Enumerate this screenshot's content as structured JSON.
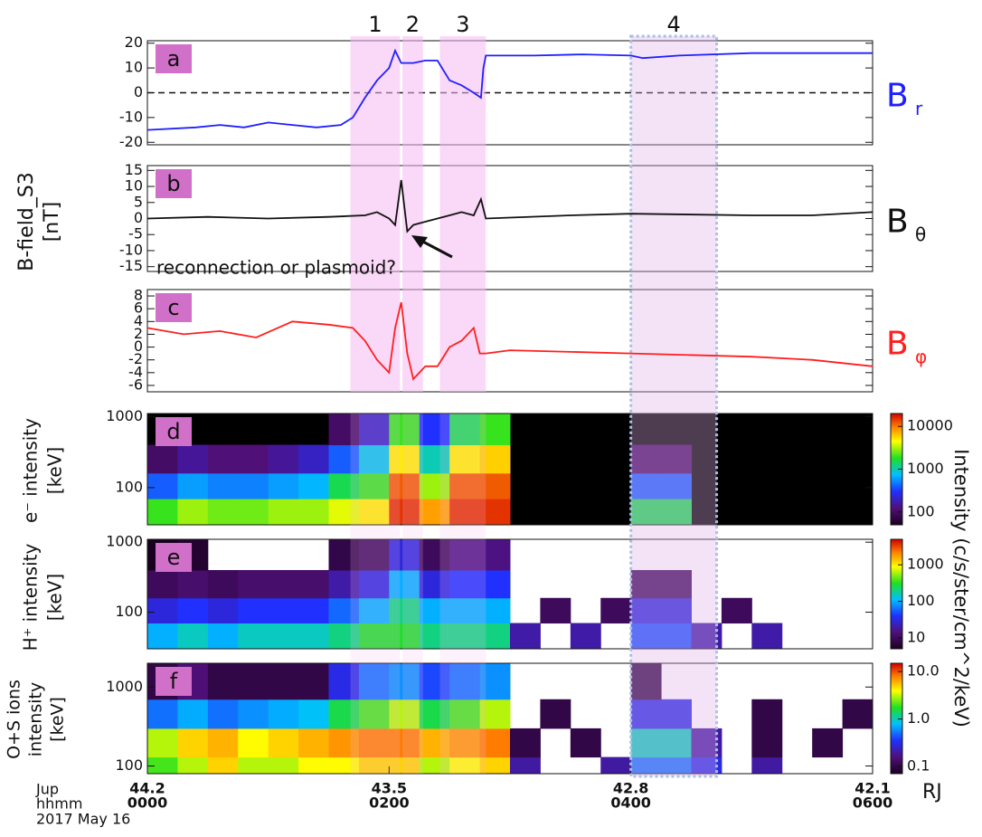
{
  "figure": {
    "y_label_b": [
      "B-field_S3",
      "[nT]"
    ],
    "y_label_d": [
      "e⁻ intensity",
      "[keV]"
    ],
    "y_label_e": [
      "H⁺ intensity",
      "[keV]"
    ],
    "y_label_f": [
      "O+S ions",
      "intensity",
      "[keV]"
    ],
    "colorbar_label": "Intensity (c/s/ster/cm^2/keV)",
    "footer_rows": [
      "Jup",
      "hhmm",
      "2017 May 16"
    ],
    "distance_unit": "RJ",
    "annotation": "reconnection or plasmoid?",
    "regions": [
      {
        "label": "1",
        "start": 1.68,
        "end": 2.09
      },
      {
        "label": "2",
        "start": 2.11,
        "end": 2.28
      },
      {
        "label": "3",
        "start": 2.42,
        "end": 2.8
      },
      {
        "label": "4",
        "start": 4.0,
        "end": 4.71
      }
    ]
  },
  "chart_data": [
    {
      "type": "line",
      "panel": "a",
      "color": "#1f1fff",
      "zero_line": true,
      "side_label": {
        "text": "B",
        "sub": "r"
      },
      "xlim": [
        0,
        6
      ],
      "ylim": [
        -21,
        21
      ],
      "yticks": [
        -20,
        -10,
        0,
        10,
        20
      ],
      "x": [
        0,
        0.4,
        0.6,
        0.8,
        1.0,
        1.2,
        1.4,
        1.6,
        1.7,
        1.8,
        1.9,
        2.0,
        2.05,
        2.1,
        2.2,
        2.3,
        2.4,
        2.5,
        2.6,
        2.7,
        2.76,
        2.78,
        2.8,
        3.2,
        3.6,
        4.0,
        4.1,
        4.4,
        5.0,
        5.5,
        6.0
      ],
      "y": [
        -15,
        -14,
        -13,
        -14,
        -12,
        -13,
        -14,
        -13,
        -10,
        -2,
        5,
        10,
        17,
        12,
        12,
        13,
        13,
        5,
        3,
        0,
        -2,
        10,
        15,
        15,
        15.5,
        15,
        14,
        15,
        16,
        16,
        16
      ]
    },
    {
      "type": "line",
      "panel": "b",
      "color": "#111111",
      "side_label": {
        "text": "B",
        "sub": "θ"
      },
      "xlim": [
        0,
        6
      ],
      "ylim": [
        -16.5,
        16.5
      ],
      "yticks": [
        -15,
        -10,
        -5,
        0,
        5,
        10,
        15
      ],
      "x": [
        0,
        0.5,
        1.0,
        1.5,
        1.8,
        1.9,
        2.0,
        2.05,
        2.1,
        2.15,
        2.2,
        2.3,
        2.5,
        2.6,
        2.7,
        2.76,
        2.8,
        3.5,
        4.0,
        5.0,
        5.5,
        6.0
      ],
      "y": [
        0,
        0.5,
        0,
        0.5,
        1,
        2,
        0,
        -2,
        12,
        -4,
        -2,
        -1,
        1,
        2,
        1,
        6,
        0,
        1,
        1.5,
        1,
        1,
        2
      ]
    },
    {
      "type": "line",
      "panel": "c",
      "color": "#ff1f1f",
      "side_label": {
        "text": "B",
        "sub": "φ"
      },
      "xlim": [
        0,
        6
      ],
      "ylim": [
        -7,
        9
      ],
      "yticks": [
        -6,
        -4,
        -2,
        0,
        2,
        4,
        6,
        8
      ],
      "x": [
        0,
        0.3,
        0.6,
        0.9,
        1.2,
        1.5,
        1.7,
        1.8,
        1.9,
        2.0,
        2.05,
        2.1,
        2.15,
        2.2,
        2.3,
        2.4,
        2.5,
        2.6,
        2.7,
        2.75,
        2.8,
        3.0,
        4.0,
        5.0,
        5.5,
        6.0
      ],
      "y": [
        3,
        2,
        2.5,
        1.5,
        4,
        3.5,
        3,
        1,
        -2,
        -4,
        3,
        7,
        -1,
        -5,
        -3,
        -3,
        0,
        1,
        3,
        -1,
        -1,
        -0.5,
        -1,
        -1.5,
        -2,
        -3
      ]
    },
    {
      "type": "heatmap",
      "panel": "d",
      "missing_color": "#000000",
      "xlim": [
        0,
        6
      ],
      "ylim": [
        30,
        1100
      ],
      "yticks": [
        100,
        1000
      ],
      "log_y": true,
      "clim": [
        50,
        20000
      ],
      "cticks": [
        100,
        1000,
        10000
      ],
      "x_edges": [
        0,
        0.25,
        0.5,
        0.75,
        1.0,
        1.25,
        1.5,
        1.75,
        2.0,
        2.25,
        2.5,
        2.75,
        3.0,
        3.25,
        3.5,
        3.75,
        4.0,
        4.25,
        4.5,
        4.75,
        5.0,
        5.25,
        5.5,
        5.75,
        6.0
      ],
      "y_edges": [
        30,
        70,
        160,
        400,
        1100
      ],
      "z": [
        [
          2000,
          3000,
          2500,
          2500,
          3000,
          3000,
          4000,
          5000,
          15000,
          8000,
          15000,
          15000,
          null,
          null,
          null,
          null,
          1500,
          1500,
          null,
          null,
          null,
          null,
          null,
          null
        ],
        [
          400,
          600,
          500,
          500,
          600,
          700,
          1500,
          2000,
          12000,
          3000,
          12000,
          12000,
          null,
          null,
          null,
          null,
          400,
          400,
          null,
          null,
          null,
          null,
          null,
          null
        ],
        [
          100,
          150,
          120,
          120,
          150,
          200,
          400,
          800,
          5000,
          1000,
          5000,
          6000,
          null,
          null,
          null,
          null,
          100,
          100,
          null,
          null,
          null,
          null,
          null,
          null
        ],
        [
          null,
          null,
          null,
          null,
          null,
          null,
          100,
          200,
          2000,
          300,
          1500,
          2000,
          null,
          null,
          null,
          null,
          null,
          null,
          null,
          null,
          null,
          null,
          null,
          null
        ]
      ]
    },
    {
      "type": "heatmap",
      "panel": "e",
      "missing_color": "#ffffff",
      "xlim": [
        0,
        6
      ],
      "ylim": [
        30,
        1100
      ],
      "yticks": [
        100,
        1000
      ],
      "log_y": true,
      "clim": [
        5,
        5000
      ],
      "cticks": [
        10,
        100,
        1000
      ],
      "x_edges": [
        0,
        0.25,
        0.5,
        0.75,
        1.0,
        1.25,
        1.5,
        1.75,
        2.0,
        2.25,
        2.5,
        2.75,
        3.0,
        3.25,
        3.5,
        3.75,
        4.0,
        4.25,
        4.5,
        4.75,
        5.0,
        5.25,
        5.5,
        5.75,
        6.0
      ],
      "y_edges": [
        30,
        70,
        160,
        400,
        1100
      ],
      "z": [
        [
          100,
          150,
          100,
          150,
          150,
          150,
          200,
          300,
          300,
          200,
          200,
          200,
          20,
          null,
          20,
          null,
          50,
          50,
          20,
          null,
          20,
          null,
          null,
          null
        ],
        [
          30,
          40,
          30,
          40,
          40,
          40,
          60,
          100,
          200,
          100,
          100,
          100,
          null,
          10,
          null,
          10,
          30,
          30,
          null,
          10,
          null,
          null,
          null,
          null
        ],
        [
          10,
          12,
          10,
          12,
          12,
          12,
          20,
          30,
          100,
          30,
          40,
          40,
          null,
          null,
          null,
          null,
          10,
          10,
          null,
          null,
          null,
          null,
          null,
          null
        ],
        [
          5,
          6,
          null,
          null,
          null,
          null,
          8,
          10,
          30,
          10,
          15,
          15,
          null,
          null,
          null,
          null,
          null,
          null,
          null,
          null,
          null,
          null,
          null,
          null
        ]
      ]
    },
    {
      "type": "heatmap",
      "panel": "f",
      "missing_color": "#ffffff",
      "xlim": [
        0,
        6
      ],
      "ylim": [
        80,
        2000
      ],
      "yticks": [
        100,
        1000
      ],
      "log_y": true,
      "clim": [
        0.07,
        15
      ],
      "cticks": [
        0.1,
        {
          "value": 1,
          "label": "1.0"
        },
        {
          "value": 10,
          "label": "10.0"
        }
      ],
      "x_edges": [
        0,
        0.25,
        0.5,
        0.75,
        1.0,
        1.25,
        1.5,
        1.75,
        2.0,
        2.25,
        2.5,
        2.75,
        3.0,
        3.25,
        3.5,
        3.75,
        4.0,
        4.25,
        4.5,
        4.75,
        5.0,
        5.25,
        5.5,
        5.75,
        6.0
      ],
      "y_edges": [
        80,
        130,
        300,
        700,
        2000
      ],
      "z": [
        [
          2,
          3,
          5,
          3,
          3,
          4,
          4,
          5,
          5,
          3,
          4,
          5,
          0.2,
          null,
          null,
          0.2,
          0.5,
          0.5,
          0.3,
          null,
          0.2,
          null,
          null,
          null
        ],
        [
          3,
          5,
          6,
          4,
          5,
          6,
          7,
          8,
          8,
          6,
          7,
          8,
          0.1,
          null,
          0.1,
          null,
          1,
          1,
          0.2,
          null,
          0.1,
          null,
          0.1,
          null
        ],
        [
          0.5,
          0.7,
          0.5,
          0.6,
          0.7,
          0.8,
          1.5,
          2,
          3,
          1.5,
          2,
          3,
          null,
          0.1,
          null,
          null,
          0.3,
          0.3,
          null,
          null,
          0.1,
          null,
          null,
          0.1
        ],
        [
          0.1,
          0.15,
          0.1,
          0.1,
          0.1,
          0.1,
          0.3,
          0.5,
          0.6,
          0.4,
          0.5,
          0.6,
          null,
          null,
          null,
          null,
          0.1,
          null,
          null,
          null,
          null,
          null,
          null,
          null
        ]
      ],
      "xticks": [
        {
          "value": 0,
          "label": "0000"
        },
        {
          "value": 2,
          "label": "0200"
        },
        {
          "value": 4,
          "label": "0400"
        },
        {
          "value": 6,
          "label": "0600"
        }
      ],
      "rj_labels": [
        "44.2",
        "43.5",
        "42.8",
        "42.1"
      ]
    }
  ]
}
